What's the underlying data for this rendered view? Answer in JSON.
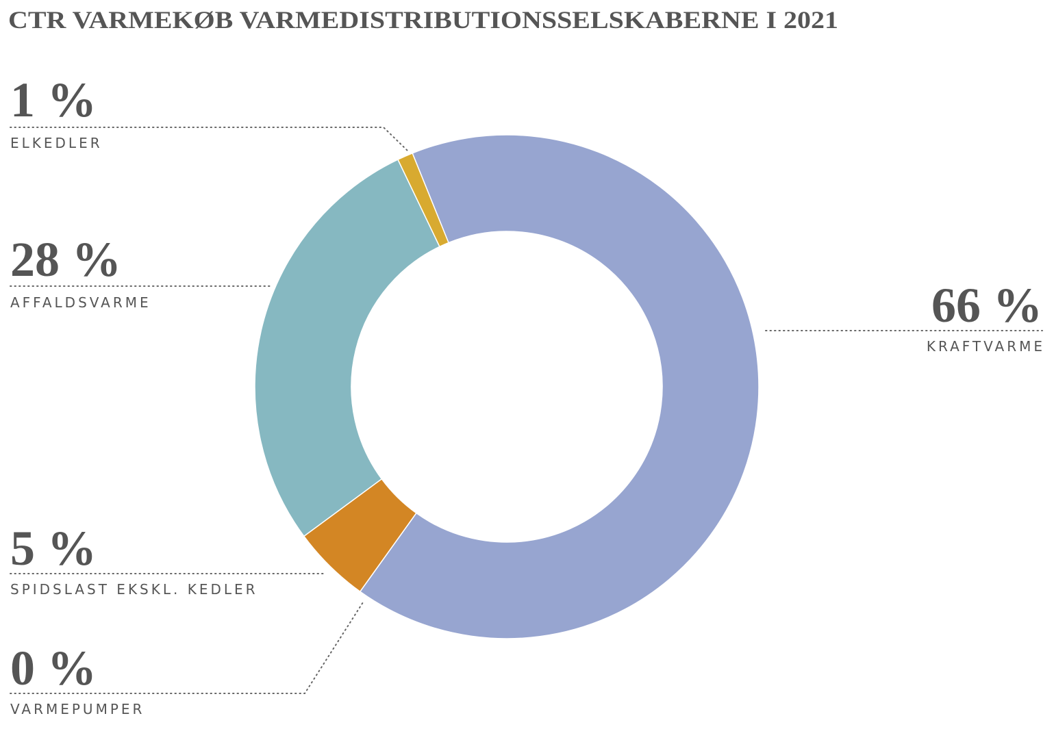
{
  "chart_data": {
    "type": "donut",
    "title": "CTR VARMEKØB VARMEDISTRIBUTIONSSELSKABERNE I 2021",
    "categories": [
      "KRAFTVARME",
      "VARMEPUMPER",
      "SPIDSLAST EKSKL. KEDLER",
      "AFFALDSVARME",
      "ELKEDLER"
    ],
    "values": [
      66,
      0,
      5,
      28,
      1
    ],
    "value_labels": [
      "66 %",
      "0 %",
      "5 %",
      "28 %",
      "1 %"
    ],
    "colors": [
      "#97a5d0",
      "#d9d9d9",
      "#d38624",
      "#86b8c1",
      "#d8aa30"
    ]
  }
}
